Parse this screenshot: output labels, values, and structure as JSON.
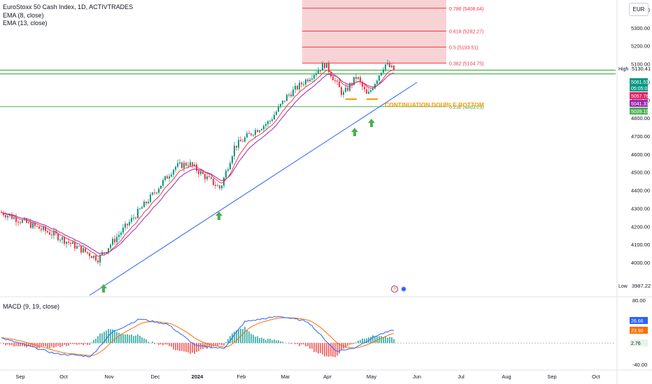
{
  "legend": {
    "title": "EuroStoxx 50 Cash Index, 1D, ACTIVTRADES",
    "ema8": "EMA (8, close)",
    "ema13": "EMA (13, close)"
  },
  "currency": "EUR",
  "chart_data": {
    "type": "candlestick",
    "title": "EuroStoxx 50 Cash Index, 1D, ACTIVTRADES",
    "x_ticks": [
      "Sep",
      "Oct",
      "Nov",
      "Dec",
      "2024",
      "Feb",
      "Mar",
      "Apr",
      "May",
      "Jun",
      "Jul",
      "Aug",
      "Sep",
      "Oct"
    ],
    "y_ticks": [
      "4000.00",
      "4100.00",
      "4200.00",
      "4300.00",
      "4400.00",
      "4500.00",
      "4600.00",
      "4700.00",
      "4800.00",
      "4900.00",
      "5000.00",
      "5100.00",
      "5200.00",
      "5300.00",
      "5400.00"
    ],
    "ylim": [
      3960,
      5490
    ],
    "price_path": [
      {
        "date": "Sep",
        "close": 4280
      },
      {
        "date": "Oct",
        "close": 4150
      },
      {
        "date": "late Oct",
        "close": 4020
      },
      {
        "date": "Nov",
        "close": 4200
      },
      {
        "date": "mid Nov",
        "close": 4360
      },
      {
        "date": "Dec",
        "close": 4530
      },
      {
        "date": "mid Dec",
        "close": 4550
      },
      {
        "date": "early Jan",
        "close": 4470
      },
      {
        "date": "mid Jan",
        "close": 4410
      },
      {
        "date": "late Jan",
        "close": 4640
      },
      {
        "date": "Feb",
        "close": 4720
      },
      {
        "date": "late Feb",
        "close": 4780
      },
      {
        "date": "Mar",
        "close": 4920
      },
      {
        "date": "mid Mar",
        "close": 5020
      },
      {
        "date": "Apr",
        "close": 5100
      },
      {
        "date": "mid Apr",
        "close": 4930
      },
      {
        "date": "late Apr",
        "close": 5030
      },
      {
        "date": "early May",
        "close": 4920
      },
      {
        "date": "mid May",
        "close": 5100
      },
      {
        "date": "last",
        "close": 5061.53
      }
    ],
    "fibonacci": [
      {
        "label": "0.786 (5408.64)",
        "value": 5408.64
      },
      {
        "label": "0.618 (5282.27)",
        "value": 5282.27
      },
      {
        "label": "0.5 (5193.51)",
        "value": 5193.51
      },
      {
        "label": "0.382 (5104.75)",
        "value": 5104.75
      },
      {
        "label": "0.236 (4863.29)",
        "value": 4863.29
      }
    ],
    "annotation": "CONTINUATION DOUBLE BOTTOM",
    "high": {
      "label": "High",
      "value": "5130.41"
    },
    "low": {
      "label": "Low",
      "value": "3987.22"
    },
    "price_tags": [
      {
        "text": "5061.53",
        "value": 5061.53,
        "color": "#089981"
      },
      {
        "text": "05:05:01",
        "value": 5061.53,
        "color": "#089981"
      },
      {
        "text": "5057.76",
        "value": 5057.76,
        "color": "#e91e63"
      },
      {
        "text": "5041.33",
        "value": 5041.33,
        "color": "#9c27b0"
      },
      {
        "text": "5039.19",
        "value": 5039.19,
        "color": "#4caf50"
      }
    ],
    "macd": {
      "title": "MACD (9, 19, close)",
      "y_ticks": [
        "80.00",
        "-40.00"
      ],
      "tags": [
        {
          "text": "26.66",
          "color": "#2962ff"
        },
        {
          "text": "23.90",
          "color": "#ff6d00"
        },
        {
          "text": "2.76",
          "color": "#e6f4ea"
        }
      ]
    }
  },
  "colors": {
    "up": "#089981",
    "down": "#f23645",
    "ema8": "#f23645",
    "ema13": "#9c27b0",
    "fib_zone": "#f8d3d6",
    "green_line": "#4caf50",
    "trend": "#2962ff",
    "arrow": "#4caf50",
    "annotation": "#ff9800"
  }
}
